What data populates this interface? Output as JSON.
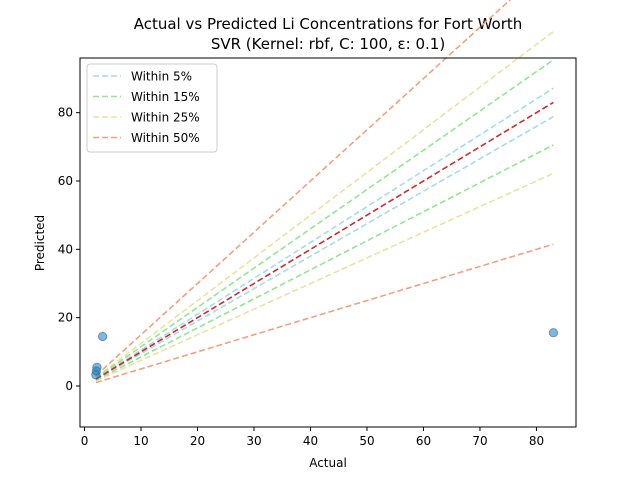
{
  "chart_data": {
    "type": "scatter",
    "title": "Actual vs Predicted Li Concentrations for Fort Worth",
    "subtitle": "SVR (Kernel: rbf, C: 100, ε: 0.1)",
    "xlabel": "Actual",
    "ylabel": "Predicted",
    "xlim": [
      -0.8,
      87.0
    ],
    "ylim": [
      -12.0,
      96.0
    ],
    "xticks": [
      0,
      10,
      20,
      30,
      40,
      50,
      60,
      70,
      80
    ],
    "yticks": [
      0,
      20,
      40,
      60,
      80
    ],
    "grid": false,
    "legend_position": "top-left",
    "points": [
      {
        "x": 2.0,
        "y": 3.3
      },
      {
        "x": 2.1,
        "y": 4.4
      },
      {
        "x": 2.2,
        "y": 5.5
      },
      {
        "x": 3.2,
        "y": 14.5
      },
      {
        "x": 83.0,
        "y": 15.6
      }
    ],
    "point_color": "#1f77b4",
    "identity_line": {
      "from": 2.0,
      "to": 83.0,
      "color": "#d62728"
    },
    "bands": [
      {
        "name": "Within 5%",
        "tolerance": 0.05,
        "color": "#a6dce8"
      },
      {
        "name": "Within 15%",
        "tolerance": 0.15,
        "color": "#90e890"
      },
      {
        "name": "Within 25%",
        "tolerance": 0.25,
        "color": "#ede1a0"
      },
      {
        "name": "Within 50%",
        "tolerance": 0.5,
        "color": "#f5a07c"
      }
    ],
    "band_x_range": [
      2.0,
      83.0
    ]
  }
}
